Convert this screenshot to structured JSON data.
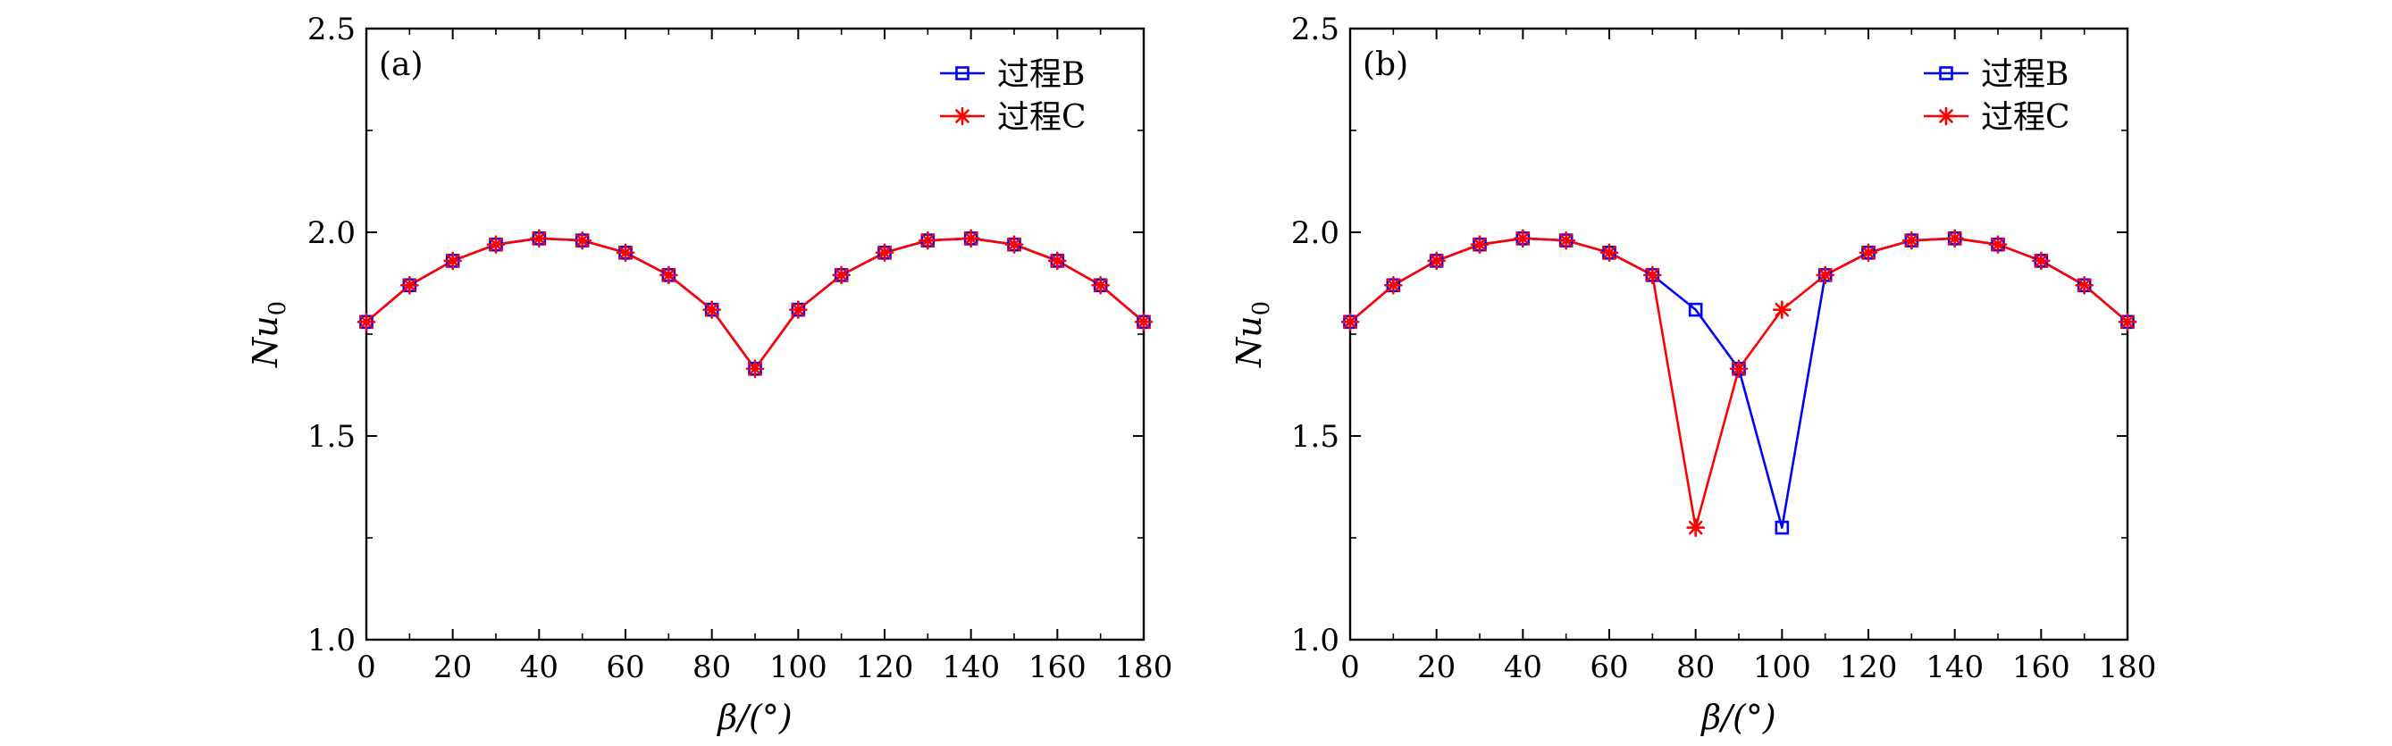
{
  "chart_data": [
    {
      "type": "line",
      "panel_label": "(a)",
      "xlabel": "β/(°)",
      "ylabel": "Nu",
      "ylabel_sub": "0",
      "xlim": [
        0,
        180
      ],
      "ylim": [
        1.0,
        2.5
      ],
      "xticks": [
        0,
        20,
        40,
        60,
        80,
        100,
        120,
        140,
        160,
        180
      ],
      "xtick_labels": [
        "0",
        "20",
        "40",
        "60",
        "80",
        "100",
        "120",
        "140",
        "160",
        "180"
      ],
      "yticks": [
        1.0,
        1.5,
        2.0,
        2.5
      ],
      "ytick_labels": [
        "1.0",
        "1.5",
        "2.0",
        "2.5"
      ],
      "legend_position": "top-right",
      "x": [
        0,
        10,
        20,
        30,
        40,
        50,
        60,
        70,
        80,
        90,
        100,
        110,
        120,
        130,
        140,
        150,
        160,
        170,
        180
      ],
      "series": [
        {
          "name": "过程B",
          "color": "#0000ff",
          "marker": "square",
          "values": [
            1.78,
            1.87,
            1.93,
            1.97,
            1.985,
            1.98,
            1.95,
            1.895,
            1.81,
            1.665,
            1.81,
            1.895,
            1.95,
            1.98,
            1.985,
            1.97,
            1.93,
            1.87,
            1.78
          ]
        },
        {
          "name": "过程C",
          "color": "#ff0000",
          "marker": "asterisk",
          "values": [
            1.78,
            1.87,
            1.93,
            1.97,
            1.985,
            1.98,
            1.95,
            1.895,
            1.81,
            1.665,
            1.81,
            1.895,
            1.95,
            1.98,
            1.985,
            1.97,
            1.93,
            1.87,
            1.78
          ]
        }
      ]
    },
    {
      "type": "line",
      "panel_label": "(b)",
      "xlabel": "β/(°)",
      "ylabel": "Nu",
      "ylabel_sub": "0",
      "xlim": [
        0,
        180
      ],
      "ylim": [
        1.0,
        2.5
      ],
      "xticks": [
        0,
        20,
        40,
        60,
        80,
        100,
        120,
        140,
        160,
        180
      ],
      "xtick_labels": [
        "0",
        "20",
        "40",
        "60",
        "80",
        "100",
        "120",
        "140",
        "160",
        "180"
      ],
      "yticks": [
        1.0,
        1.5,
        2.0,
        2.5
      ],
      "ytick_labels": [
        "1.0",
        "1.5",
        "2.0",
        "2.5"
      ],
      "legend_position": "top-right",
      "x": [
        0,
        10,
        20,
        30,
        40,
        50,
        60,
        70,
        80,
        90,
        100,
        110,
        120,
        130,
        140,
        150,
        160,
        170,
        180
      ],
      "series": [
        {
          "name": "过程B",
          "color": "#0000ff",
          "marker": "square",
          "values": [
            1.78,
            1.87,
            1.93,
            1.97,
            1.985,
            1.98,
            1.95,
            1.895,
            1.81,
            1.665,
            1.275,
            1.895,
            1.95,
            1.98,
            1.985,
            1.97,
            1.93,
            1.87,
            1.78
          ]
        },
        {
          "name": "过程C",
          "color": "#ff0000",
          "marker": "asterisk",
          "values": [
            1.78,
            1.87,
            1.93,
            1.97,
            1.985,
            1.98,
            1.95,
            1.895,
            1.275,
            1.665,
            1.81,
            1.895,
            1.95,
            1.98,
            1.985,
            1.97,
            1.93,
            1.87,
            1.78
          ]
        }
      ]
    }
  ]
}
